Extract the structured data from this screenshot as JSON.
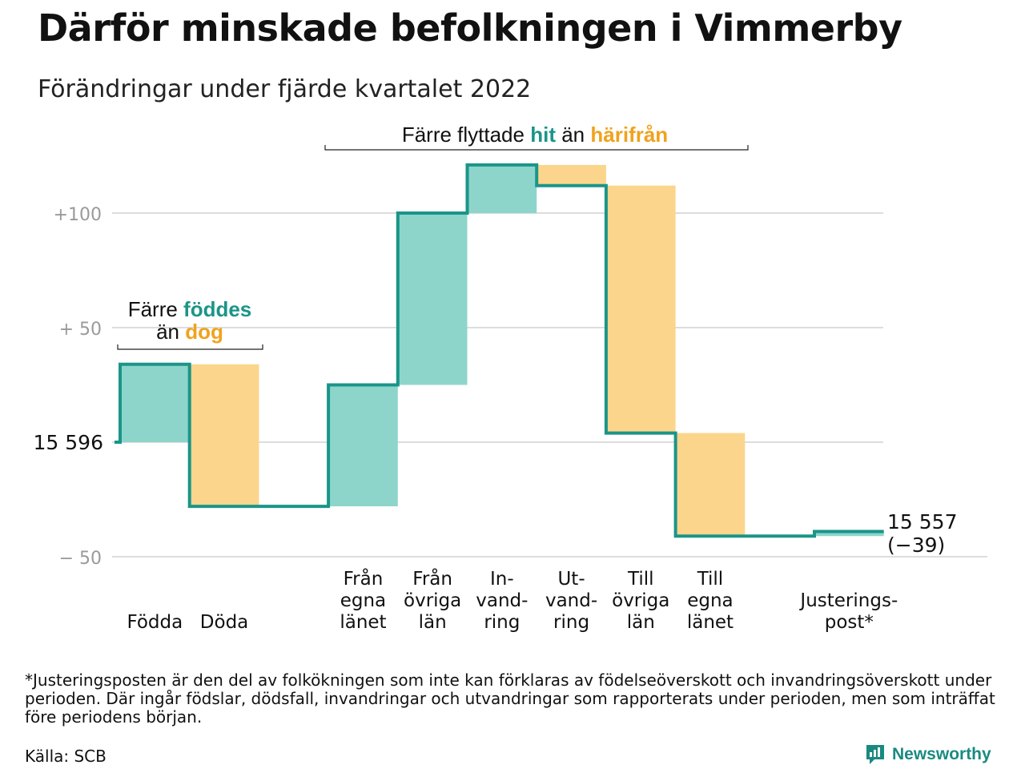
{
  "title": "Därför minskade befolkningen i Vimmerby",
  "subtitle": "Förändringar under fjärde kvartalet 2022",
  "annotations": {
    "births": {
      "line1_pre": "Färre ",
      "line1_hl": "föddes",
      "line2_pre": "än ",
      "line2_hl": "dog"
    },
    "moves": {
      "pre": "Färre flyttade ",
      "hl1": "hit",
      "mid": " än ",
      "hl2": "härifrån"
    }
  },
  "start_label": "15 596",
  "end_label_1": "15 557",
  "end_label_2": "(−39)",
  "footnote": "*Justeringsposten är den del av folkökningen som inte kan förklaras av födelseöverskott och invandringsöverskott under perioden. Där ingår födslar, dödsfall, invandringar och utvandringar som rapporterats under perioden, men som inträffat före periodens början.",
  "source": "Källa: SCB",
  "brand": "Newsworthy",
  "colors": {
    "increase": "#8dd5cb",
    "decrease": "#fbd58c",
    "line": "#1a9588",
    "teal_text": "#1a9588",
    "orange_text": "#f0a21e",
    "grid": "#dddddd"
  },
  "chart_data": {
    "type": "waterfall",
    "start": 15596,
    "end": 15557,
    "change": -39,
    "ylim": [
      -55,
      122
    ],
    "y_ticks": [
      {
        "value": 100,
        "label": "+100"
      },
      {
        "value": 50,
        "label": "+ 50"
      },
      {
        "value": 0,
        "label": "15 596"
      },
      {
        "value": -50,
        "label": "− 50"
      }
    ],
    "categories": [
      {
        "label": [
          "Födda"
        ],
        "value": 34
      },
      {
        "label": [
          "Döda"
        ],
        "value": -62
      },
      {
        "label": [],
        "value": 0
      },
      {
        "label": [
          "Från",
          "egna",
          "länet"
        ],
        "value": 53
      },
      {
        "label": [
          "Från",
          "övriga",
          "län"
        ],
        "value": 75
      },
      {
        "label": [
          "In-",
          "vand-",
          "ring"
        ],
        "value": 21
      },
      {
        "label": [
          "Ut-",
          "vand-",
          "ring"
        ],
        "value": -9
      },
      {
        "label": [
          "Till",
          "övriga",
          "län"
        ],
        "value": -108
      },
      {
        "label": [
          "Till",
          "egna",
          "länet"
        ],
        "value": -45
      },
      {
        "label": [],
        "value": 0
      },
      {
        "label": [
          "Justerings-",
          "post*"
        ],
        "value": 2
      }
    ]
  }
}
